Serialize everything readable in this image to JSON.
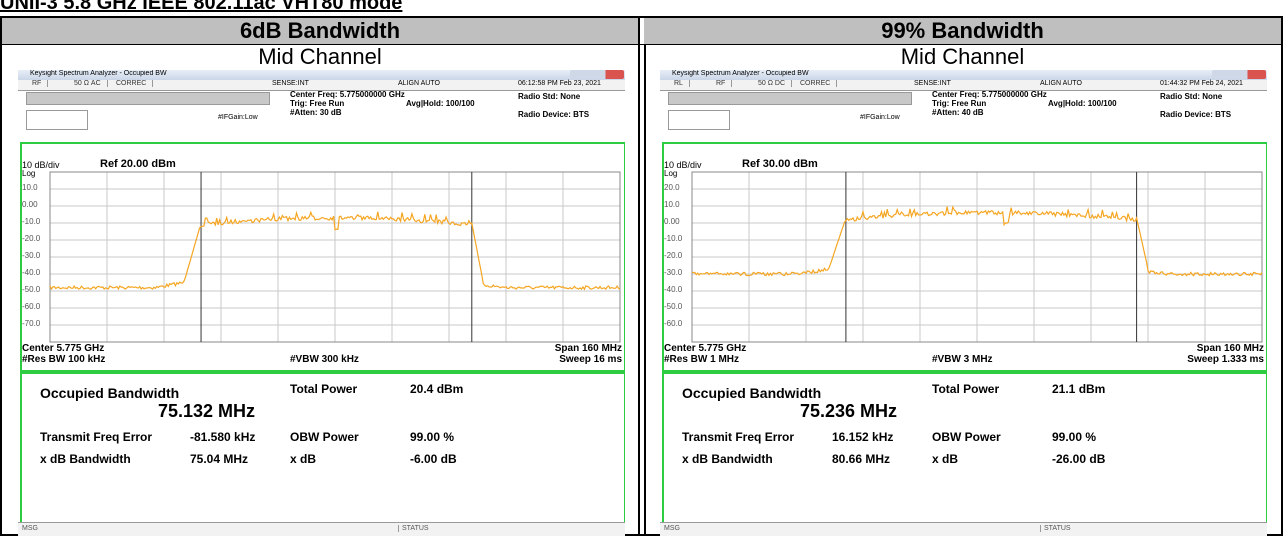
{
  "title": "UNII-3 5.8 GHz IEEE 802.11ac VHT80 mode",
  "panels": [
    {
      "header": "6dB Bandwidth",
      "channel": "Mid Channel",
      "window_title": "Keysight Spectrum Analyzer - Occupied BW",
      "toolbar": [
        "RF",
        "50 Ω  AC",
        "CORREC"
      ],
      "sense": "SENSE:INT",
      "align": "ALIGN AUTO",
      "timestamp": "06:12:58 PM Feb 23, 2021",
      "center_freq": "Center Freq: 5.775000000 GHz",
      "trig": "Trig: Free Run",
      "avg_hold": "Avg|Hold: 100/100",
      "atten": "#Atten: 30 dB",
      "if_gain": "#IFGain:Low",
      "radio_std": "Radio Std: None",
      "radio_device": "Radio Device: BTS",
      "scale": "10 dB/div",
      "ref": "Ref 20.00 dBm",
      "log": "Log",
      "y_labels": [
        "10.0",
        "0.00",
        "-10.0",
        "-20.0",
        "-30.0",
        "-40.0",
        "-50.0",
        "-60.0",
        "-70.0"
      ],
      "center": "Center  5.775 GHz",
      "res_bw": "#Res BW  100 kHz",
      "vbw": "#VBW  300 kHz",
      "span": "Span 160 MHz",
      "sweep": "Sweep  16 ms",
      "results": {
        "obw_label": "Occupied Bandwidth",
        "obw_value": "75.132 MHz",
        "total_power_label": "Total Power",
        "total_power": "20.4 dBm",
        "tfe_label": "Transmit Freq Error",
        "tfe": "-81.580 kHz",
        "obw_power_label": "OBW Power",
        "obw_power": "99.00 %",
        "xdb_bw_label": "x dB Bandwidth",
        "xdb_bw": "75.04 MHz",
        "xdb_label": "x dB",
        "xdb": "-6.00 dB"
      },
      "msg": "MSG",
      "status": "STATUS"
    },
    {
      "header": "99% Bandwidth",
      "channel": "Mid Channel",
      "window_title": "Keysight Spectrum Analyzer - Occupied BW",
      "toolbar": [
        "RL",
        "RF",
        "50 Ω  DC",
        "CORREC"
      ],
      "sense": "SENSE:INT",
      "align": "ALIGN AUTO",
      "timestamp": "01:44:32 PM Feb 24, 2021",
      "center_freq": "Center Freq: 5.775000000 GHz",
      "trig": "Trig: Free Run",
      "avg_hold": "Avg|Hold: 100/100",
      "atten": "#Atten: 40 dB",
      "if_gain": "#IFGain:Low",
      "radio_std": "Radio Std: None",
      "radio_device": "Radio Device: BTS",
      "scale": "10 dB/div",
      "ref": "Ref 30.00 dBm",
      "log": "Log",
      "y_labels": [
        "20.0",
        "10.0",
        "0.00",
        "-10.0",
        "-20.0",
        "-30.0",
        "-40.0",
        "-50.0",
        "-60.0"
      ],
      "center": "Center  5.775 GHz",
      "res_bw": "#Res BW  1 MHz",
      "vbw": "#VBW  3 MHz",
      "span": "Span 160 MHz",
      "sweep": "Sweep  1.333 ms",
      "results": {
        "obw_label": "Occupied Bandwidth",
        "obw_value": "75.236 MHz",
        "total_power_label": "Total Power",
        "total_power": "21.1 dBm",
        "tfe_label": "Transmit Freq Error",
        "tfe": "16.152 kHz",
        "obw_power_label": "OBW Power",
        "obw_power": "99.00 %",
        "xdb_bw_label": "x dB Bandwidth",
        "xdb_bw": "80.66 MHz",
        "xdb_label": "x dB",
        "xdb": "-26.00 dB"
      },
      "msg": "MSG",
      "status": "STATUS"
    }
  ]
}
